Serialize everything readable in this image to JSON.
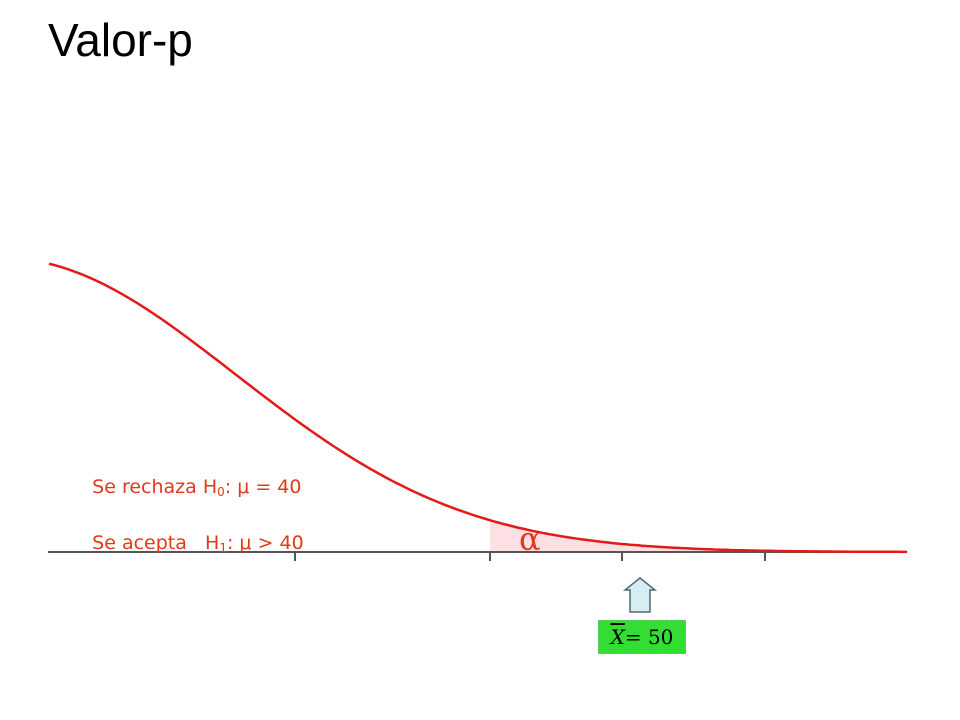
{
  "slide": {
    "title": "Valor-p"
  },
  "annotations": {
    "reject_prefix": "Se rechaza H",
    "reject_sub": "0",
    "reject_suffix": ": μ = 40",
    "accept_prefix": "Se acepta   H",
    "accept_sub": "1",
    "accept_suffix": ": μ > 40",
    "alpha_symbol": "α",
    "stat_var": "X",
    "stat_rest": " = 50"
  },
  "colors": {
    "curve": "#e21a1a",
    "region_fill": "#fde0e3",
    "text_accent": "#e03a1a",
    "axis": "#555555",
    "stat_box_bg": "#33dd33",
    "arrow_fill": "#d6eef2",
    "arrow_stroke": "#556677"
  }
}
